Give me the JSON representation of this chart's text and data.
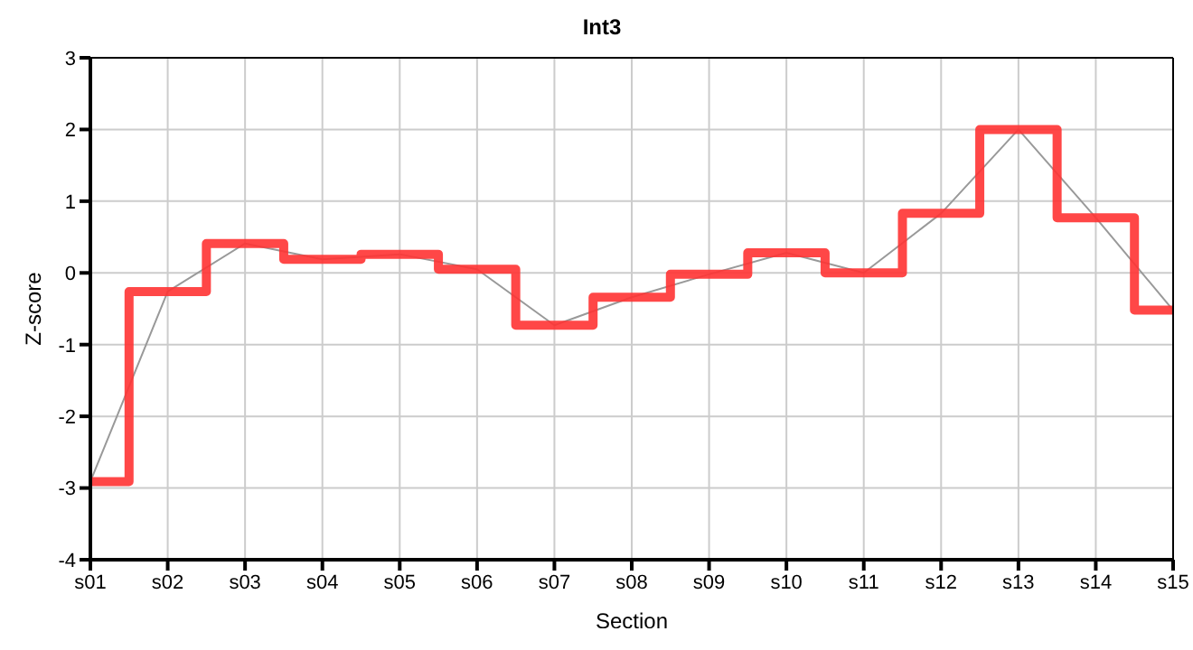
{
  "chart_data": {
    "type": "line",
    "title": "Int3",
    "xlabel": "Section",
    "ylabel": "Z-score",
    "categories": [
      "s01",
      "s02",
      "s03",
      "s04",
      "s05",
      "s06",
      "s07",
      "s08",
      "s09",
      "s10",
      "s11",
      "s12",
      "s13",
      "s14",
      "s15"
    ],
    "series": [
      {
        "color": "#999999",
        "values": [
          -2.91,
          -0.26,
          0.41,
          0.19,
          0.26,
          0.05,
          -0.73,
          -0.34,
          -0.02,
          0.28,
          0.0,
          0.83,
          2.0,
          0.77,
          -0.52
        ]
      },
      {
        "type": "step",
        "color": "#ff3333",
        "values": [
          -2.91,
          -0.26,
          0.41,
          0.19,
          0.26,
          0.05,
          -0.73,
          -0.34,
          -0.02,
          0.28,
          0.0,
          0.83,
          2.0,
          0.77,
          -0.52
        ]
      }
    ],
    "ylim": [
      -4,
      3
    ],
    "yticks": [
      -4,
      -3,
      -2,
      -1,
      0,
      1,
      2,
      3
    ],
    "grid": true,
    "legend": false,
    "marker": "none"
  }
}
